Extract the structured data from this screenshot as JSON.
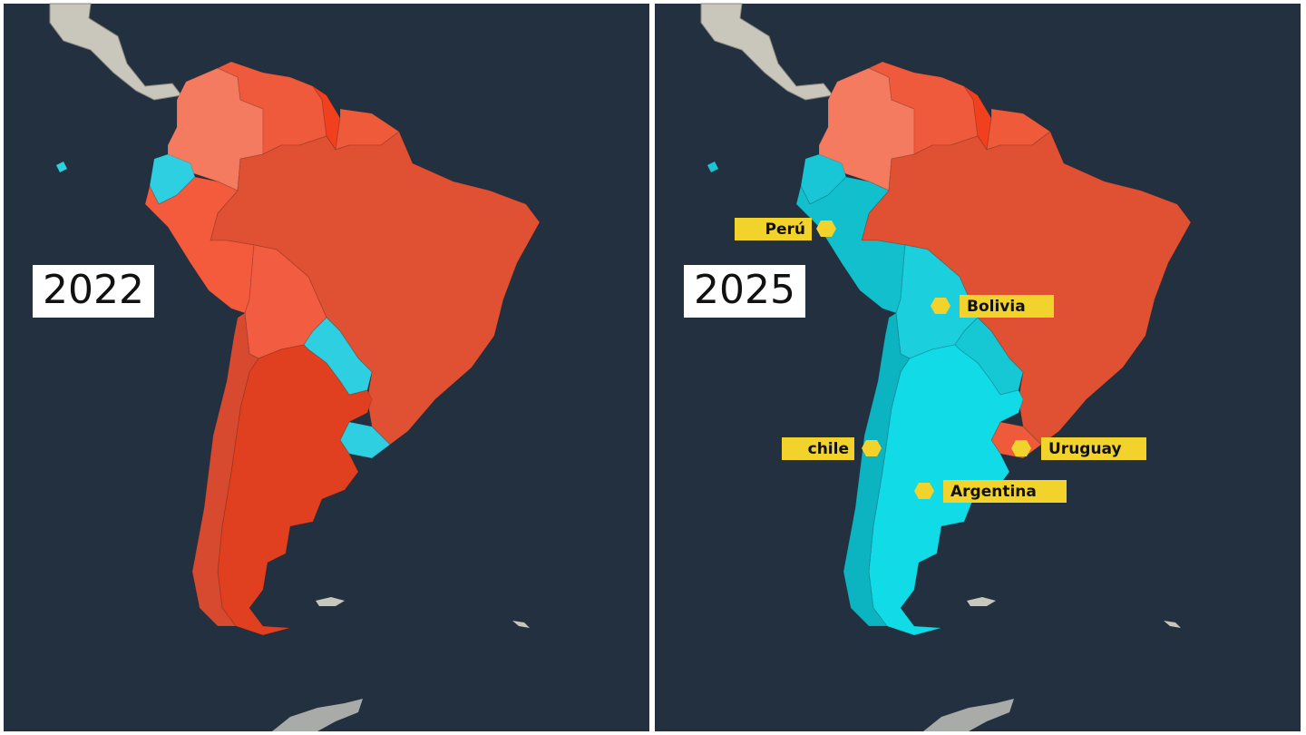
{
  "panels": [
    {
      "year": "2022"
    },
    {
      "year": "2025",
      "labels": [
        "Perú",
        "Bolivia",
        "chile",
        "Uruguay",
        "Argentina"
      ]
    }
  ]
}
